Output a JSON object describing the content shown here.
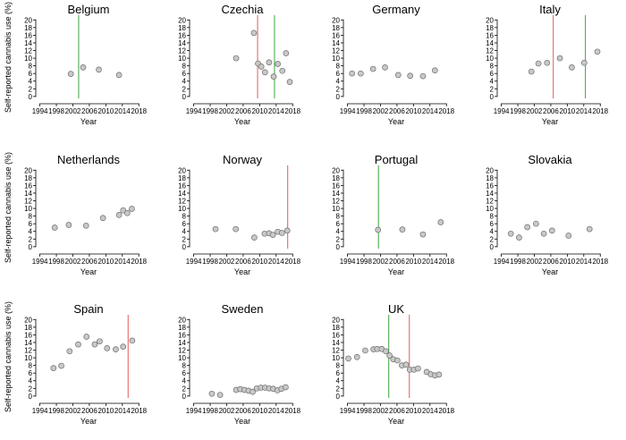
{
  "chart_data": {
    "type": "scatter",
    "y_label": "Self-reported cannabis use (%)",
    "x_label": "Year",
    "x_ticks": [
      1994,
      1998,
      2002,
      2006,
      2010,
      2014,
      2018
    ],
    "y_ticks": [
      0,
      2,
      4,
      6,
      8,
      10,
      12,
      14,
      16,
      18,
      20
    ],
    "xlim": [
      1993,
      2018.6
    ],
    "ylim": [
      -0.5,
      21
    ],
    "colors": {
      "point_fill": "#c8c8c8",
      "point_stroke": "#6e6e6e",
      "green_line": "#3aa43a",
      "red_line": "#e05a5a"
    },
    "panels": [
      {
        "title": "Belgium",
        "green_lines": [
          2003.4
        ],
        "red_lines": [],
        "points": [
          [
            2001.5,
            5.9
          ],
          [
            2004.5,
            7.6
          ],
          [
            2008.3,
            7.0
          ],
          [
            2013.2,
            5.6
          ]
        ]
      },
      {
        "title": "Czechia",
        "green_lines": [
          2013.6
        ],
        "red_lines": [
          2009.5
        ],
        "points": [
          [
            2004.3,
            10.0
          ],
          [
            2008.6,
            16.6
          ],
          [
            2009.6,
            8.6
          ],
          [
            2010.4,
            7.8
          ],
          [
            2011.3,
            6.3
          ],
          [
            2012.3,
            8.9
          ],
          [
            2013.4,
            5.2
          ],
          [
            2014.4,
            8.5
          ],
          [
            2015.5,
            6.7
          ],
          [
            2016.4,
            11.3
          ],
          [
            2017.3,
            3.8
          ]
        ]
      },
      {
        "title": "Germany",
        "green_lines": [],
        "red_lines": [],
        "points": [
          [
            1995.1,
            6.0
          ],
          [
            1997.2,
            6.0
          ],
          [
            2000.2,
            7.2
          ],
          [
            2003.1,
            7.6
          ],
          [
            2006.3,
            5.6
          ],
          [
            2009.2,
            5.4
          ],
          [
            2012.3,
            5.3
          ],
          [
            2015.2,
            6.8
          ]
        ]
      },
      {
        "title": "Italy",
        "green_lines": [
          2014.4
        ],
        "red_lines": [
          2006.6
        ],
        "points": [
          [
            2001.3,
            6.5
          ],
          [
            2003.0,
            8.6
          ],
          [
            2005.1,
            8.8
          ],
          [
            2008.2,
            10.0
          ],
          [
            2011.1,
            7.6
          ],
          [
            2014.1,
            8.8
          ],
          [
            2017.3,
            11.7
          ]
        ]
      },
      {
        "title": "Netherlands",
        "green_lines": [],
        "red_lines": [],
        "points": [
          [
            1997.6,
            5.0
          ],
          [
            2001.0,
            5.7
          ],
          [
            2005.2,
            5.5
          ],
          [
            2009.3,
            7.5
          ],
          [
            2013.2,
            8.3
          ],
          [
            2014.2,
            9.5
          ],
          [
            2015.2,
            8.8
          ],
          [
            2016.3,
            9.9
          ]
        ]
      },
      {
        "title": "Norway",
        "green_lines": [],
        "red_lines": [
          2016.8
        ],
        "points": [
          [
            1999.3,
            4.6
          ],
          [
            2004.2,
            4.6
          ],
          [
            2008.7,
            2.4
          ],
          [
            2011.2,
            3.4
          ],
          [
            2012.3,
            3.5
          ],
          [
            2013.2,
            3.1
          ],
          [
            2014.4,
            3.9
          ],
          [
            2015.4,
            3.6
          ],
          [
            2016.7,
            4.2
          ]
        ]
      },
      {
        "title": "Portugal",
        "green_lines": [
          2001.5
        ],
        "red_lines": [],
        "points": [
          [
            2001.4,
            4.4
          ],
          [
            2007.3,
            4.5
          ],
          [
            2012.3,
            3.2
          ],
          [
            2016.6,
            6.4
          ]
        ]
      },
      {
        "title": "Slovakia",
        "green_lines": [],
        "red_lines": [],
        "points": [
          [
            1996.3,
            3.4
          ],
          [
            1998.3,
            2.4
          ],
          [
            2000.3,
            5.1
          ],
          [
            2002.4,
            6.0
          ],
          [
            2004.3,
            3.4
          ],
          [
            2006.3,
            4.2
          ],
          [
            2010.3,
            2.9
          ],
          [
            2015.4,
            4.6
          ]
        ]
      },
      {
        "title": "Spain",
        "green_lines": [],
        "red_lines": [
          2015.4
        ],
        "points": [
          [
            1997.3,
            7.3
          ],
          [
            1999.2,
            7.9
          ],
          [
            2001.2,
            11.7
          ],
          [
            2003.3,
            13.5
          ],
          [
            2005.3,
            15.5
          ],
          [
            2007.3,
            13.5
          ],
          [
            2008.5,
            14.3
          ],
          [
            2010.3,
            12.5
          ],
          [
            2012.4,
            12.2
          ],
          [
            2014.2,
            12.9
          ],
          [
            2016.4,
            14.5
          ]
        ]
      },
      {
        "title": "Sweden",
        "green_lines": [],
        "red_lines": [],
        "points": [
          [
            1998.4,
            0.6
          ],
          [
            2000.4,
            0.3
          ],
          [
            2004.3,
            1.6
          ],
          [
            2005.3,
            1.8
          ],
          [
            2006.3,
            1.6
          ],
          [
            2007.3,
            1.4
          ],
          [
            2008.3,
            1.1
          ],
          [
            2009.3,
            2.0
          ],
          [
            2010.3,
            2.2
          ],
          [
            2011.3,
            2.2
          ],
          [
            2012.3,
            2.0
          ],
          [
            2013.3,
            1.9
          ],
          [
            2014.3,
            1.5
          ],
          [
            2015.3,
            1.9
          ],
          [
            2016.3,
            2.3
          ]
        ]
      },
      {
        "title": "UK",
        "green_lines": [
          2004.0
        ],
        "red_lines": [
          2009.0
        ],
        "points": [
          [
            1994.2,
            9.8
          ],
          [
            1996.3,
            10.2
          ],
          [
            1998.3,
            11.9
          ],
          [
            2000.3,
            12.2
          ],
          [
            2001.2,
            12.3
          ],
          [
            2002.3,
            12.3
          ],
          [
            2003.3,
            11.7
          ],
          [
            2004.2,
            10.6
          ],
          [
            2005.1,
            9.6
          ],
          [
            2006.1,
            9.3
          ],
          [
            2007.2,
            8.0
          ],
          [
            2008.2,
            8.2
          ],
          [
            2009.1,
            6.9
          ],
          [
            2010.1,
            6.9
          ],
          [
            2011.1,
            7.2
          ],
          [
            2013.2,
            6.3
          ],
          [
            2014.2,
            5.7
          ],
          [
            2015.2,
            5.4
          ],
          [
            2016.2,
            5.6
          ]
        ]
      }
    ]
  }
}
